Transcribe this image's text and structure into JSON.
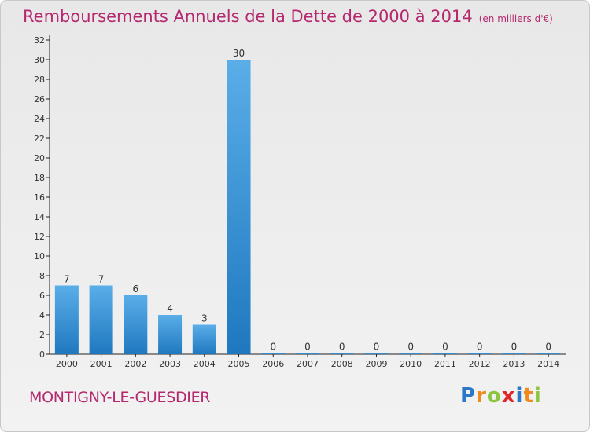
{
  "chart_data": {
    "type": "bar",
    "title": "Remboursements Annuels de la Dette de 2000 à 2014",
    "subtitle": "(en milliers d'€)",
    "categories": [
      "2000",
      "2001",
      "2002",
      "2003",
      "2004",
      "2005",
      "2006",
      "2007",
      "2008",
      "2009",
      "2010",
      "2011",
      "2012",
      "2013",
      "2014"
    ],
    "values": [
      7,
      7,
      6,
      4,
      3,
      30,
      0,
      0,
      0,
      0,
      0,
      0,
      0,
      0,
      0
    ],
    "ylim": [
      0,
      32
    ],
    "yticks": [
      0,
      2,
      4,
      6,
      8,
      10,
      12,
      14,
      16,
      18,
      20,
      22,
      24,
      26,
      28,
      30,
      32
    ],
    "grid": false,
    "xlabel": "",
    "ylabel": "",
    "colors": {
      "bar_light": "#5aaee8",
      "bar_dark": "#1f78bf",
      "title": "#b5286e",
      "axis": "#222222"
    }
  },
  "footer": {
    "commune": "MONTIGNY-LE-GUESDIER",
    "logo_letters": [
      {
        "char": "P",
        "color": "#2b78c8"
      },
      {
        "char": "r",
        "color": "#f08a1c"
      },
      {
        "char": "o",
        "color": "#8cc63f"
      },
      {
        "char": "x",
        "color": "#e02626"
      },
      {
        "char": "i",
        "color": "#2b78c8"
      },
      {
        "char": "t",
        "color": "#f08a1c"
      },
      {
        "char": "i",
        "color": "#8cc63f"
      }
    ]
  }
}
